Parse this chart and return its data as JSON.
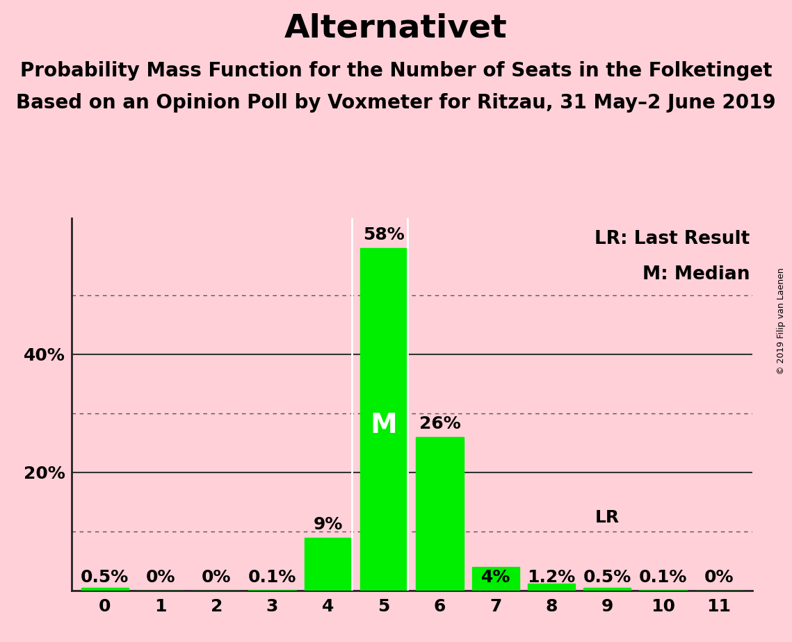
{
  "title": "Alternativet",
  "subtitle1": "Probability Mass Function for the Number of Seats in the Folketinget",
  "subtitle2": "Based on an Opinion Poll by Voxmeter for Ritzau, 31 May–2 June 2019",
  "copyright": "© 2019 Filip van Laenen",
  "seats": [
    0,
    1,
    2,
    3,
    4,
    5,
    6,
    7,
    8,
    9,
    10,
    11
  ],
  "probabilities": [
    0.5,
    0.0,
    0.0,
    0.1,
    9.0,
    58.0,
    26.0,
    4.0,
    1.2,
    0.5,
    0.1,
    0.0
  ],
  "prob_labels": [
    "0.5%",
    "0%",
    "0%",
    "0.1%",
    "9%",
    "58%",
    "26%",
    "4%",
    "1.2%",
    "0.5%",
    "0.1%",
    "0%"
  ],
  "bar_color": "#00ee00",
  "background_color": "#ffd0d8",
  "median_seat": 5,
  "last_result_seat": 9,
  "legend_lr": "LR: Last Result",
  "legend_m": "M: Median",
  "ymax": 63,
  "title_fontsize": 34,
  "subtitle_fontsize": 20,
  "tick_fontsize": 18,
  "legend_fontsize": 19,
  "bar_label_fontsize": 18,
  "median_fontsize": 28,
  "lr_fontsize": 18,
  "copyright_fontsize": 9
}
